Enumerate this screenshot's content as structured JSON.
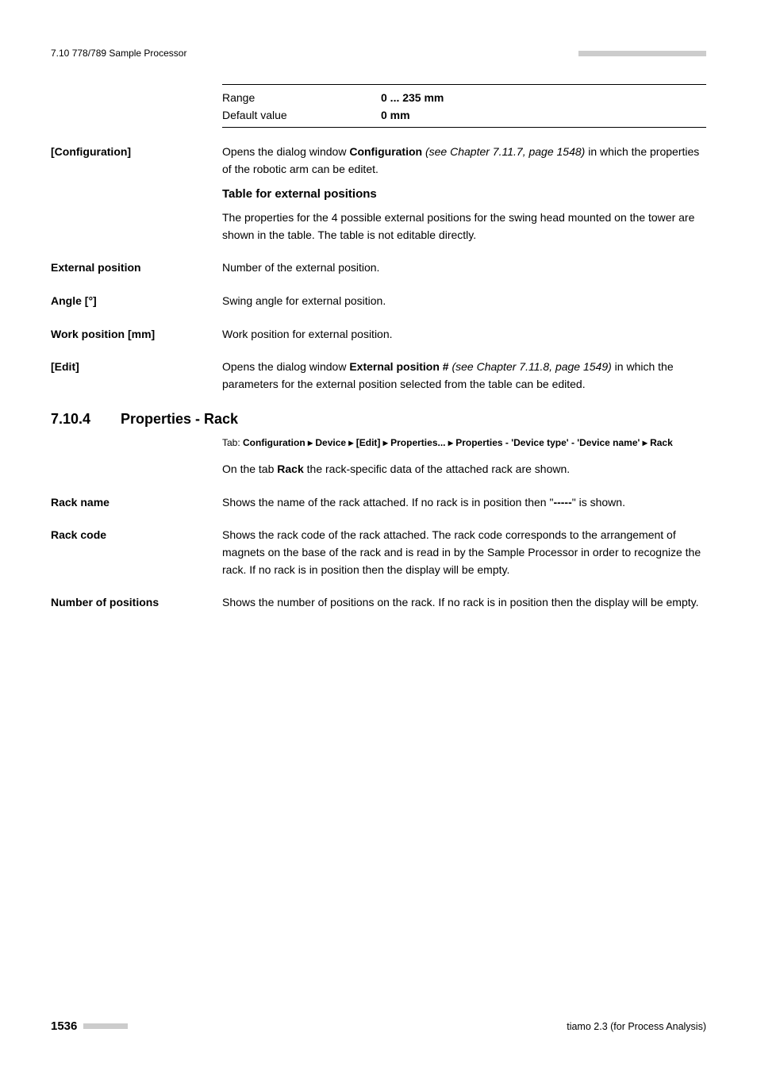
{
  "header": {
    "left": "7.10 778/789 Sample Processor",
    "square_count": 23,
    "square_color": "#cccccc"
  },
  "range_table": {
    "rows": [
      {
        "label": "Range",
        "value": "0 ... 235 mm",
        "value_bold": true
      },
      {
        "label": "Default value",
        "value": "0 mm",
        "value_bold": true
      }
    ]
  },
  "entries_top": [
    {
      "term": "[Configuration]",
      "paragraphs_html": [
        "Opens the dialog window <span class=\"bold\">Configuration</span> <span class=\"italic\">(see Chapter 7.11.7, page 1548)</span> in which the properties of the robotic arm can be editet."
      ],
      "subhead": "Table for external positions",
      "subhead_paragraph": "The properties for the 4 possible external positions for the swing head mounted on the tower are shown in the table. The table is not editable directly."
    },
    {
      "term": "External position",
      "paragraphs_html": [
        "Number of the external position."
      ]
    },
    {
      "term": "Angle [°]",
      "paragraphs_html": [
        "Swing angle for external position."
      ]
    },
    {
      "term": "Work position [mm]",
      "paragraphs_html": [
        "Work position for external position."
      ]
    },
    {
      "term": "[Edit]",
      "paragraphs_html": [
        "Opens the dialog window <span class=\"bold\">External position #</span> <span class=\"italic\">(see Chapter 7.11.8, page 1549)</span> in which the parameters for the external position selected from the table can be edited."
      ]
    }
  ],
  "section": {
    "number": "7.10.4",
    "title": "Properties - Rack",
    "tab_lead": "Tab: ",
    "tab_path_html": "Configuration <span class=\"arrow\">▸</span> Device <span class=\"arrow\">▸</span> [Edit] <span class=\"arrow\">▸</span> Properties... <span class=\"arrow\">▸</span> Properties - 'Device type' - 'Device name' <span class=\"arrow\">▸</span> Rack",
    "intro_html": "On the tab <span class=\"bold\">Rack</span> the rack-specific data of the attached rack are shown."
  },
  "entries_bottom": [
    {
      "term": "Rack name",
      "paragraphs_html": [
        "Shows the name of the rack attached. If no rack is in position then \"<span class=\"bold\">-----</span>\" is shown."
      ]
    },
    {
      "term": "Rack code",
      "paragraphs_html": [
        "Shows the rack code of the rack attached. The rack code corresponds to the arrangement of magnets on the base of the rack and is read in by the Sample Processor in order to recognize the rack. If no rack is in position then the display will be empty."
      ]
    },
    {
      "term": "Number of positions",
      "paragraphs_html": [
        "Shows the number of positions on the rack. If no rack is in position then the display will be empty."
      ]
    }
  ],
  "footer": {
    "page_number": "1536",
    "square_count": 8,
    "square_color": "#cccccc",
    "right": "tiamo 2.3 (for Process Analysis)"
  }
}
